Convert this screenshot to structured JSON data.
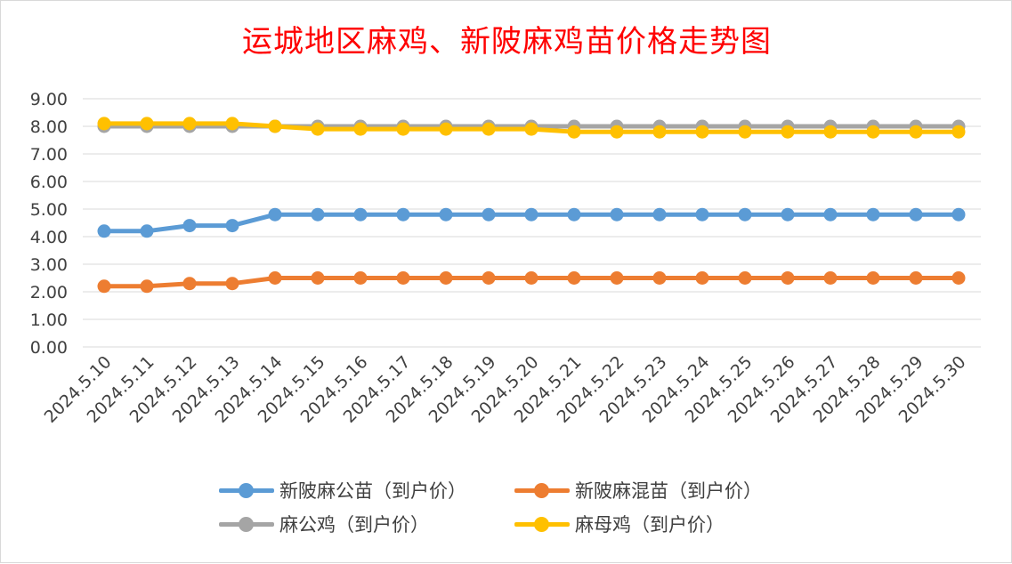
{
  "title": "运城地区麻鸡、新陂麻鸡苗价格走势图",
  "chart_data": {
    "type": "line",
    "categories": [
      "2024.5.10",
      "2024.5.11",
      "2024.5.12",
      "2024.5.13",
      "2024.5.14",
      "2024.5.15",
      "2024.5.16",
      "2024.5.17",
      "2024.5.18",
      "2024.5.19",
      "2024.5.20",
      "2024.5.21",
      "2024.5.22",
      "2024.5.23",
      "2024.5.24",
      "2024.5.25",
      "2024.5.26",
      "2024.5.27",
      "2024.5.28",
      "2024.5.29",
      "2024.5.30"
    ],
    "ylim": [
      0,
      9
    ],
    "yticks": [
      "0.00",
      "1.00",
      "2.00",
      "3.00",
      "4.00",
      "5.00",
      "6.00",
      "7.00",
      "8.00",
      "9.00"
    ],
    "grid": true,
    "legend_position": "bottom",
    "xlabel": "",
    "ylabel": "",
    "series": [
      {
        "name": "新陂麻公苗（到户价）",
        "color": "#5b9bd5",
        "values": [
          4.2,
          4.2,
          4.4,
          4.4,
          4.8,
          4.8,
          4.8,
          4.8,
          4.8,
          4.8,
          4.8,
          4.8,
          4.8,
          4.8,
          4.8,
          4.8,
          4.8,
          4.8,
          4.8,
          4.8,
          4.8
        ]
      },
      {
        "name": "新陂麻混苗（到户价）",
        "color": "#ed7d31",
        "values": [
          2.2,
          2.2,
          2.3,
          2.3,
          2.5,
          2.5,
          2.5,
          2.5,
          2.5,
          2.5,
          2.5,
          2.5,
          2.5,
          2.5,
          2.5,
          2.5,
          2.5,
          2.5,
          2.5,
          2.5,
          2.5
        ]
      },
      {
        "name": "麻公鸡（到户价）",
        "color": "#a5a5a5",
        "values": [
          8.0,
          8.0,
          8.0,
          8.0,
          8.0,
          8.0,
          8.0,
          8.0,
          8.0,
          8.0,
          8.0,
          8.0,
          8.0,
          8.0,
          8.0,
          8.0,
          8.0,
          8.0,
          8.0,
          8.0,
          8.0
        ]
      },
      {
        "name": "麻母鸡（到户价）",
        "color": "#ffc000",
        "values": [
          8.1,
          8.1,
          8.1,
          8.1,
          8.0,
          7.9,
          7.9,
          7.9,
          7.9,
          7.9,
          7.9,
          7.8,
          7.8,
          7.8,
          7.8,
          7.8,
          7.8,
          7.8,
          7.8,
          7.8,
          7.8
        ]
      }
    ]
  }
}
